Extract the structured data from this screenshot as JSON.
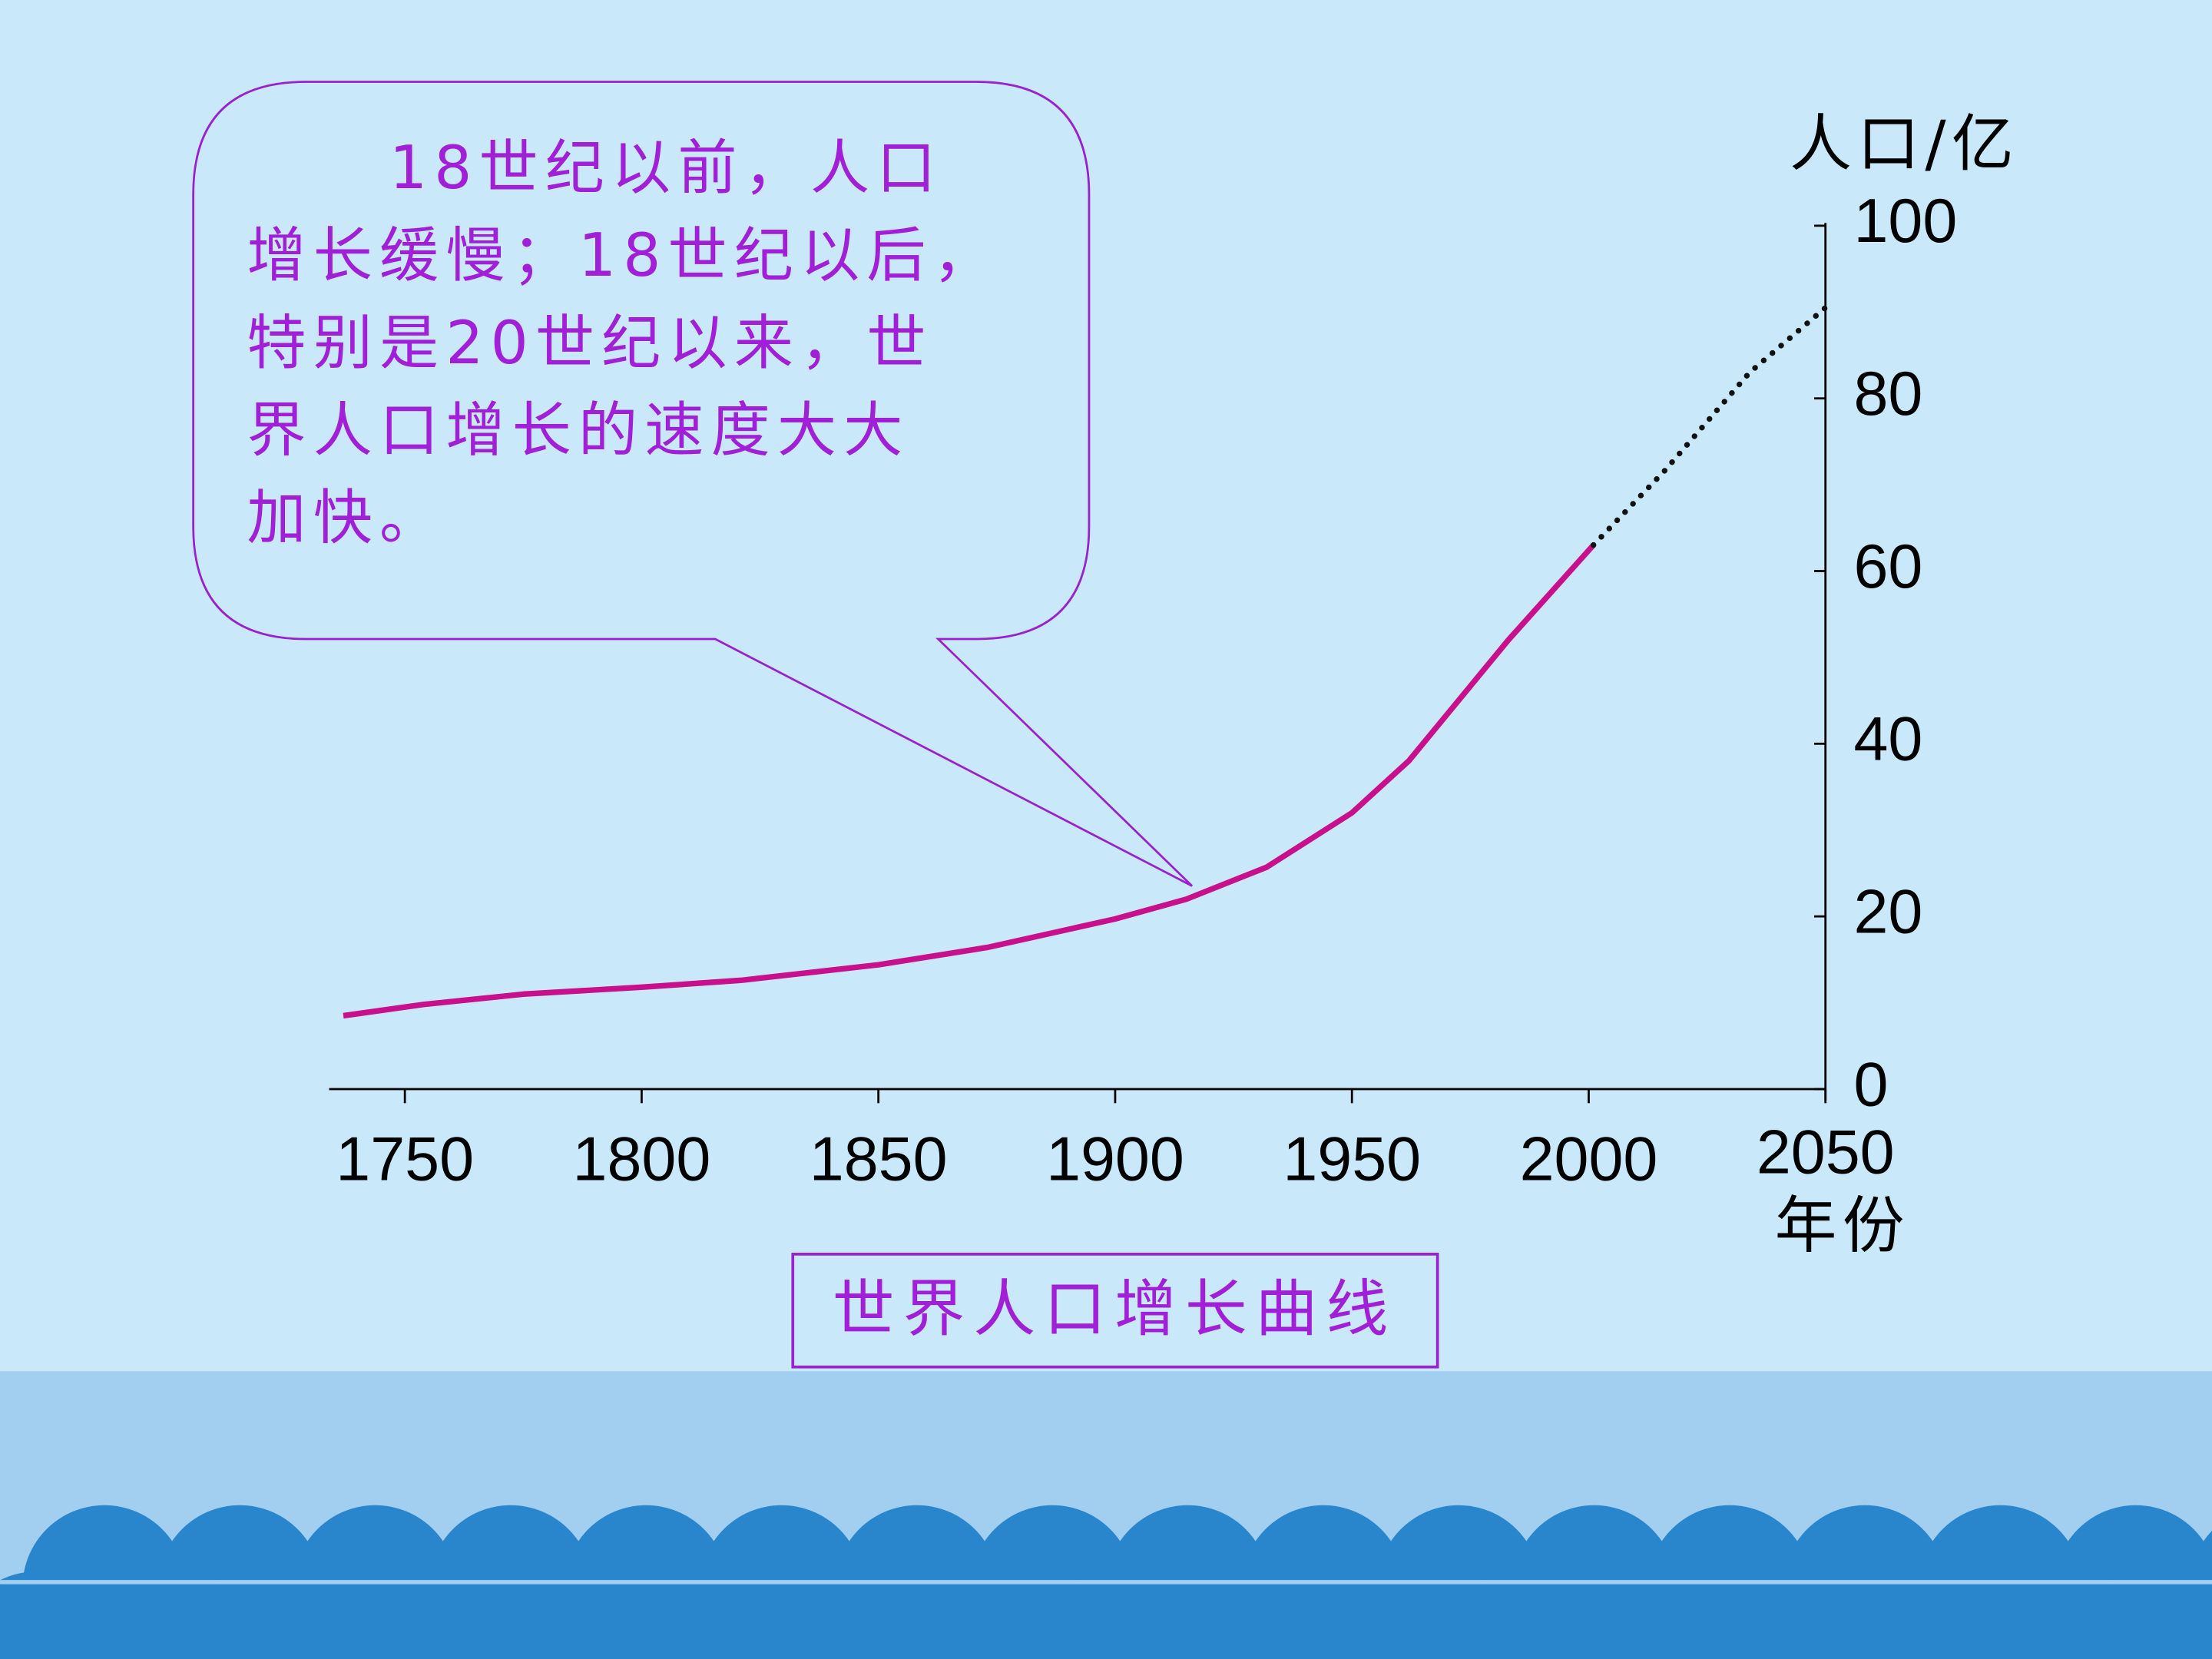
{
  "chart_data": {
    "type": "line",
    "callout": [
      "18世纪以前，人口",
      "增长缓慢；18世纪以后，",
      "特别是20世纪以来，世",
      "界人口增长的速度大大",
      "加快。"
    ],
    "caption": "世界人口增长曲线",
    "ylabel": "人口/亿",
    "xlabel": "年份",
    "xlim": [
      1734,
      2050
    ],
    "xticks": [
      1750,
      1800,
      1850,
      1900,
      1950,
      2000,
      2050
    ],
    "ylim": [
      0,
      100
    ],
    "yticks": [
      0,
      20,
      40,
      60,
      80,
      100
    ],
    "series": [
      {
        "color": "#c8108c",
        "style": "solid",
        "x": [
          1737,
          1754,
          1775,
          1800,
          1821,
          1850,
          1873,
          1900,
          1915,
          1932,
          1950,
          1962,
          1983,
          2001
        ],
        "values": [
          8.5,
          9.8,
          11,
          11.8,
          12.6,
          14.4,
          16.4,
          19.7,
          22,
          25.7,
          32,
          38,
          52,
          63
        ]
      },
      {
        "color": "#111111",
        "style": "dotted",
        "x": [
          2001,
          2016,
          2034,
          2050
        ],
        "values": [
          63,
          71.6,
          83,
          90.5
        ]
      }
    ]
  }
}
